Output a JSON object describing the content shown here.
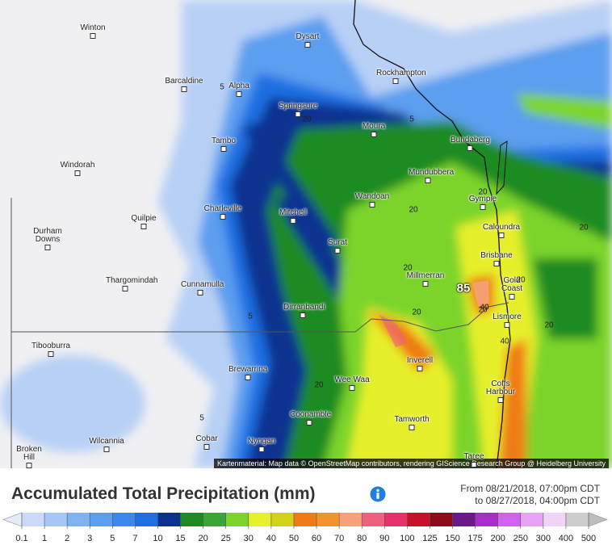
{
  "map": {
    "places": [
      "Winton",
      "Dysart",
      "Rockhampton",
      "Barcaldine",
      "Alpha",
      "Springsure",
      "Moura",
      "Bundaberg",
      "Tambo",
      "Windorah",
      "Mundubbera",
      "Gympie",
      "Wandoan",
      "Charleville",
      "Mitchell",
      "Quilpie",
      "Caloundra",
      "Durham Downs",
      "Surat",
      "Brisbane",
      "Millmerran",
      "Gold Coast",
      "Thargomindah",
      "Cunnamulla",
      "Dirranbandi",
      "Lismore",
      "Tibooburra",
      "Inverell",
      "Brewarrina",
      "Wee Waa",
      "Coffs Harbour",
      "Coonamble",
      "Tamworth",
      "Wilcannia",
      "Cobar",
      "Nyngan",
      "Broken Hill",
      "Taree"
    ],
    "contour_labels": [
      5,
      5,
      20,
      20,
      20,
      20,
      20,
      20,
      20,
      40,
      40,
      20,
      20,
      5,
      20,
      5
    ],
    "max_label": "85",
    "attribution": "Kartenmaterial: Map data © OpenStreetMap contributors, rendering GIScience Research Group @ Heidelberg University"
  },
  "legend": {
    "title": "Accumulated Total Precipitation (mm)",
    "from": "From 08/21/2018, 07:00pm CDT",
    "to": "to 08/27/2018, 04:00pm CDT",
    "ticks": [
      0.1,
      1,
      2,
      3,
      5,
      7,
      10,
      15,
      20,
      25,
      30,
      40,
      50,
      60,
      70,
      80,
      90,
      100,
      125,
      150,
      175,
      200,
      250,
      300,
      400,
      500
    ],
    "colors": [
      "#c9d9f7",
      "#a6c7f5",
      "#80b2f2",
      "#5c9ef0",
      "#3c88ee",
      "#1c6ee2",
      "#0b3190",
      "#1e8b24",
      "#3aa636",
      "#7cd42a",
      "#e6f02b",
      "#d2d21a",
      "#f07a16",
      "#f3922e",
      "#f5a27a",
      "#f0607e",
      "#e8306a",
      "#c8102a",
      "#8c0a1a",
      "#6a1a86",
      "#a82ccc",
      "#cf62ef",
      "#e6a2f5",
      "#f2d4f8",
      "#cdcdcd"
    ],
    "low_color": "#e6ecf8",
    "high_color": "#bdbdbd"
  }
}
